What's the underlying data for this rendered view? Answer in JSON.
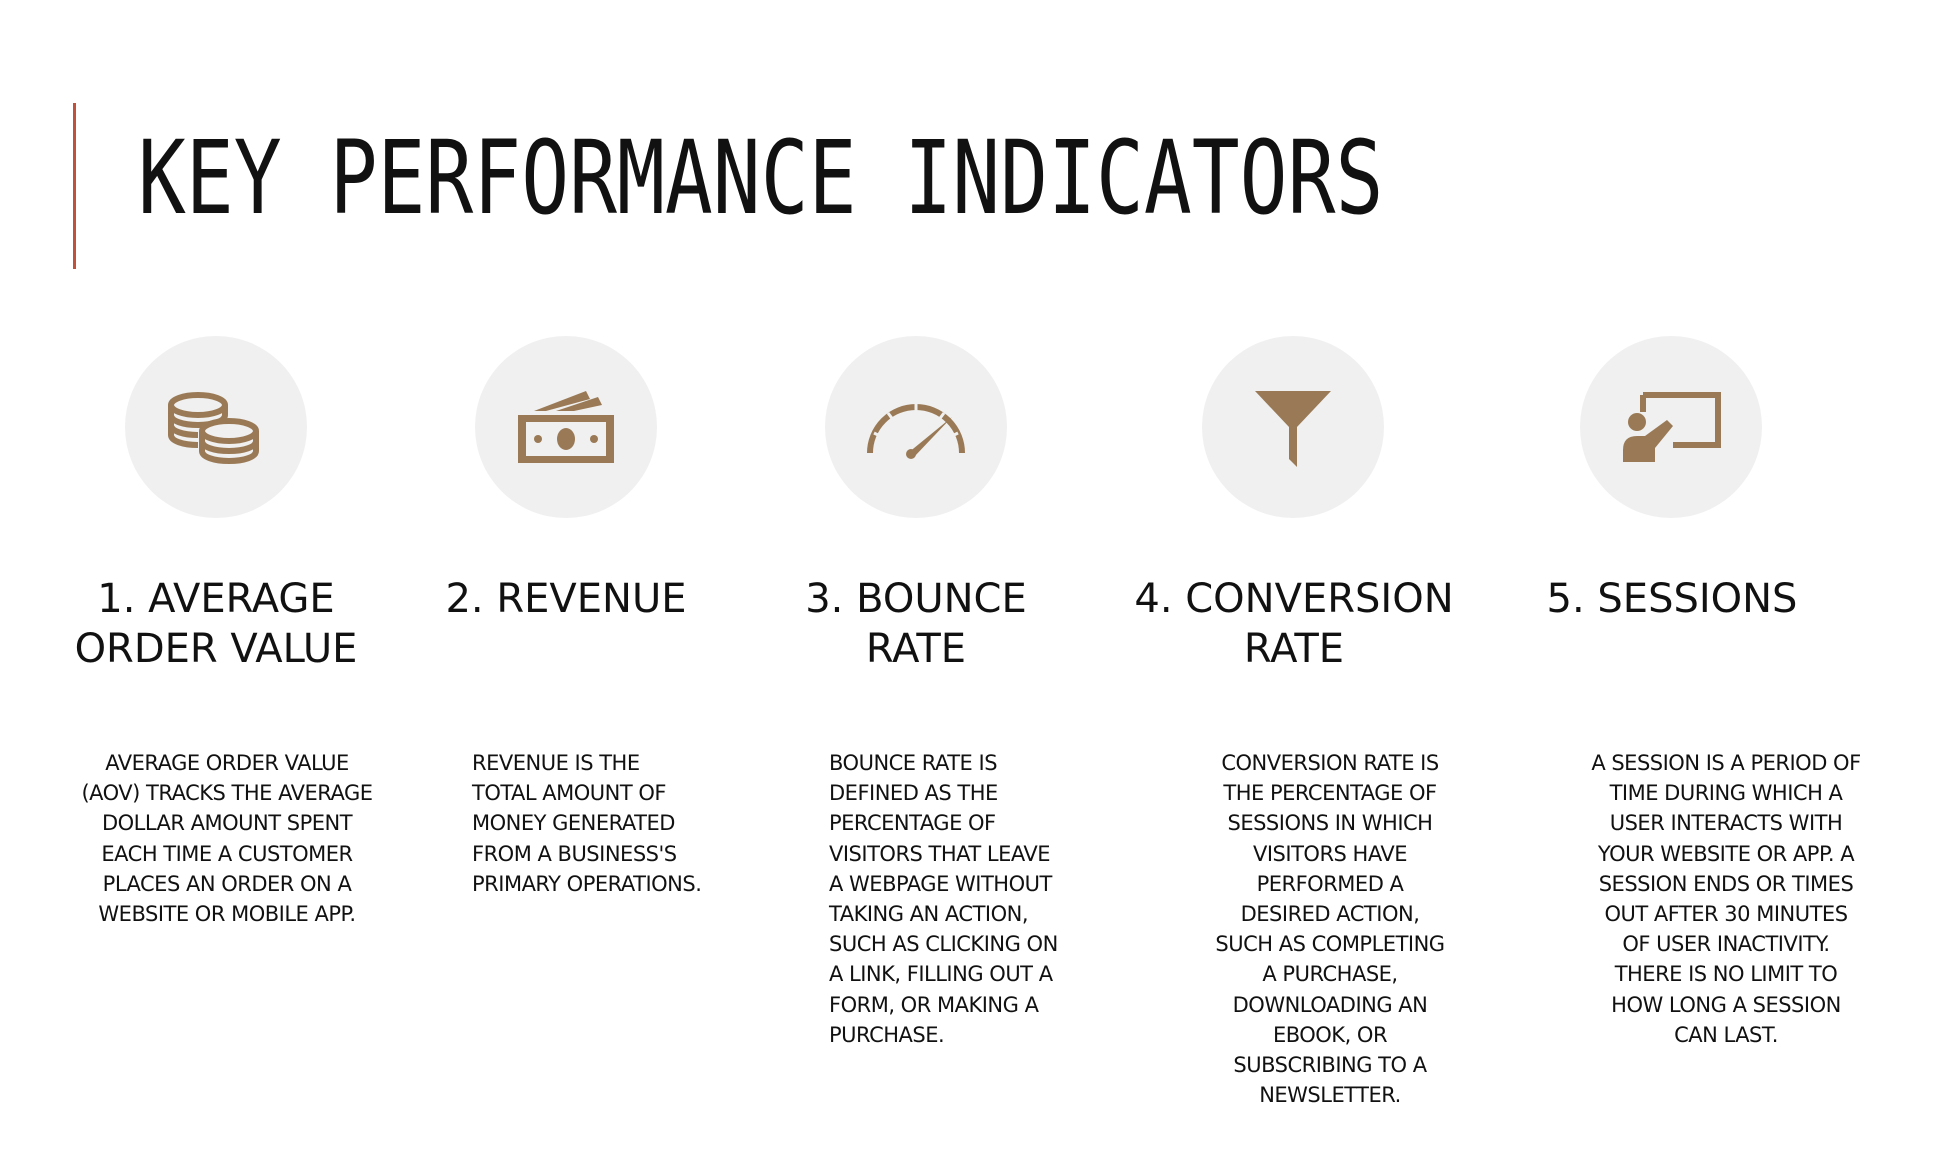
{
  "slide": {
    "title": "KEY PERFORMANCE INDICATORS"
  },
  "colors": {
    "accent_bar": "#c0523c",
    "icon": "#9a7a56",
    "icon_circle": "#f0f0f0",
    "text": "#111111"
  },
  "kpis": [
    {
      "icon": "coins-icon",
      "heading_line1": "1. AVERAGE",
      "heading_line2": "ORDER VALUE",
      "description": "AVERAGE ORDER VALUE (AOV) TRACKS THE AVERAGE DOLLAR AMOUNT SPENT EACH TIME A CUSTOMER PLACES AN ORDER ON A WEBSITE OR MOBILE APP."
    },
    {
      "icon": "money-icon",
      "heading_line1": "2. REVENUE",
      "heading_line2": "",
      "description": "REVENUE IS THE TOTAL AMOUNT OF MONEY GENERATED FROM A BUSINESS'S PRIMARY OPERATIONS."
    },
    {
      "icon": "speedometer-icon",
      "heading_line1": "3. BOUNCE",
      "heading_line2": "RATE",
      "description": "BOUNCE RATE IS DEFINED AS THE PERCENTAGE OF VISITORS THAT LEAVE A WEBPAGE WITHOUT TAKING AN ACTION, SUCH AS CLICKING ON A LINK, FILLING OUT A FORM, OR MAKING A PURCHASE."
    },
    {
      "icon": "funnel-icon",
      "heading_line1": "4. CONVERSION",
      "heading_line2": "RATE",
      "description": "CONVERSION RATE IS THE PERCENTAGE OF SESSIONS IN WHICH VISITORS HAVE PERFORMED A DESIRED ACTION, SUCH AS COMPLETING A PURCHASE, DOWNLOADING AN EBOOK, OR SUBSCRIBING TO A NEWSLETTER."
    },
    {
      "icon": "presenter-icon",
      "heading_line1": "5. SESSIONS",
      "heading_line2": "",
      "description": "A SESSION IS A PERIOD OF TIME DURING WHICH A USER INTERACTS WITH YOUR WEBSITE OR APP. A SESSION ENDS OR TIMES OUT AFTER 30 MINUTES OF USER INACTIVITY. THERE IS NO LIMIT TO HOW LONG A SESSION CAN LAST."
    }
  ]
}
